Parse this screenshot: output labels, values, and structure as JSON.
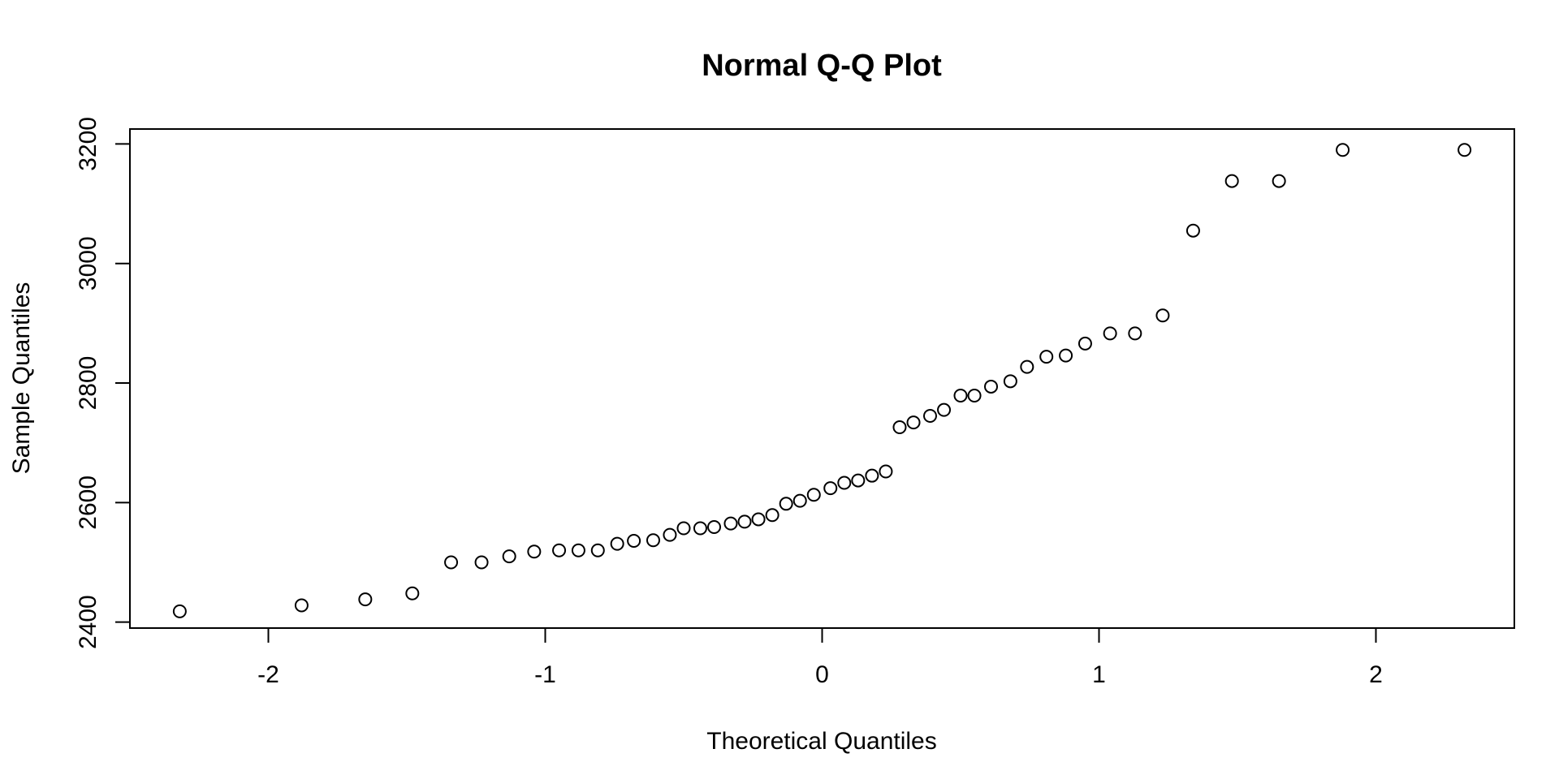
{
  "chart_data": {
    "type": "scatter",
    "title": "Normal Q-Q Plot",
    "xlabel": "Theoretical Quantiles",
    "ylabel": "Sample Quantiles",
    "xlim": [
      -2.5,
      2.5
    ],
    "ylim": [
      2390,
      3225
    ],
    "grid": false,
    "legend": "none",
    "x_ticks": [
      -2,
      -1,
      0,
      1,
      2
    ],
    "x_tick_labels": [
      "-2",
      "-1",
      "0",
      "1",
      "2"
    ],
    "y_ticks": [
      2400,
      2600,
      2800,
      3000,
      3200
    ],
    "y_tick_labels": [
      "2400",
      "2600",
      "2800",
      "3000",
      "3200"
    ],
    "marker": "open-circle",
    "points": [
      {
        "x": -2.32,
        "y": 2418
      },
      {
        "x": -1.88,
        "y": 2428
      },
      {
        "x": -1.65,
        "y": 2438
      },
      {
        "x": -1.48,
        "y": 2448
      },
      {
        "x": -1.34,
        "y": 2500
      },
      {
        "x": -1.23,
        "y": 2500
      },
      {
        "x": -1.13,
        "y": 2510
      },
      {
        "x": -1.04,
        "y": 2518
      },
      {
        "x": -0.95,
        "y": 2520
      },
      {
        "x": -0.88,
        "y": 2520
      },
      {
        "x": -0.81,
        "y": 2520
      },
      {
        "x": -0.74,
        "y": 2531
      },
      {
        "x": -0.68,
        "y": 2536
      },
      {
        "x": -0.61,
        "y": 2537
      },
      {
        "x": -0.55,
        "y": 2546
      },
      {
        "x": -0.5,
        "y": 2557
      },
      {
        "x": -0.44,
        "y": 2557
      },
      {
        "x": -0.39,
        "y": 2559
      },
      {
        "x": -0.33,
        "y": 2565
      },
      {
        "x": -0.28,
        "y": 2568
      },
      {
        "x": -0.23,
        "y": 2572
      },
      {
        "x": -0.18,
        "y": 2579
      },
      {
        "x": -0.13,
        "y": 2598
      },
      {
        "x": -0.08,
        "y": 2603
      },
      {
        "x": -0.03,
        "y": 2613
      },
      {
        "x": 0.03,
        "y": 2624
      },
      {
        "x": 0.08,
        "y": 2633
      },
      {
        "x": 0.13,
        "y": 2637
      },
      {
        "x": 0.18,
        "y": 2645
      },
      {
        "x": 0.23,
        "y": 2652
      },
      {
        "x": 0.28,
        "y": 2726
      },
      {
        "x": 0.33,
        "y": 2734
      },
      {
        "x": 0.39,
        "y": 2745
      },
      {
        "x": 0.44,
        "y": 2755
      },
      {
        "x": 0.5,
        "y": 2779
      },
      {
        "x": 0.55,
        "y": 2779
      },
      {
        "x": 0.61,
        "y": 2794
      },
      {
        "x": 0.68,
        "y": 2803
      },
      {
        "x": 0.74,
        "y": 2827
      },
      {
        "x": 0.81,
        "y": 2844
      },
      {
        "x": 0.88,
        "y": 2846
      },
      {
        "x": 0.95,
        "y": 2866
      },
      {
        "x": 1.04,
        "y": 2883
      },
      {
        "x": 1.13,
        "y": 2883
      },
      {
        "x": 1.23,
        "y": 2913
      },
      {
        "x": 1.34,
        "y": 3055
      },
      {
        "x": 1.48,
        "y": 3138
      },
      {
        "x": 1.65,
        "y": 3138
      },
      {
        "x": 1.88,
        "y": 3190
      },
      {
        "x": 2.32,
        "y": 3190
      }
    ]
  }
}
